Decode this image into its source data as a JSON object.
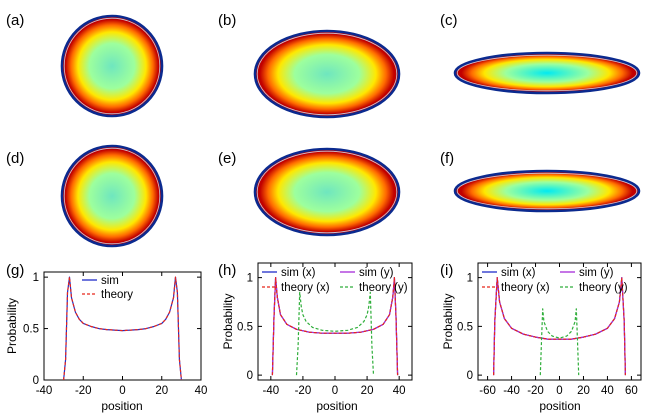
{
  "colors": {
    "blue": "#1f2dc8",
    "purple": "#a62bd8",
    "red": "#e8261a",
    "green": "#2fae3a",
    "ring": "#0b2a8f",
    "heat_edge": "#c10000",
    "heat_mid1": "#ff6a00",
    "heat_mid2": "#ffe800",
    "heat_mid3": "#9dff9d",
    "heat_center_a": "#6fe6bf",
    "heat_center_b": "#00eaf2"
  },
  "panels": [
    {
      "label": "(a)",
      "shape": "ellipse",
      "aspect": 1.0,
      "center_color": "heat_center_a"
    },
    {
      "label": "(b)",
      "shape": "ellipse",
      "aspect": 0.6,
      "center_color": "heat_center_a"
    },
    {
      "label": "(c)",
      "shape": "ellipse",
      "aspect": 0.22,
      "center_color": "heat_center_b"
    },
    {
      "label": "(d)",
      "shape": "ellipse",
      "aspect": 1.0,
      "center_color": "heat_center_a"
    },
    {
      "label": "(e)",
      "shape": "ellipse",
      "aspect": 0.6,
      "center_color": "heat_center_a"
    },
    {
      "label": "(f)",
      "shape": "ellipse",
      "aspect": 0.22,
      "center_color": "heat_center_b"
    }
  ],
  "chart_data": [
    {
      "type": "line",
      "panel_label": "(g)",
      "xlabel": "position",
      "ylabel": "Probability",
      "xlim": [
        -40,
        40
      ],
      "ylim": [
        0,
        1.05
      ],
      "xticks": [
        -40,
        -20,
        0,
        20,
        40
      ],
      "yticks": [
        0,
        0.5,
        1
      ],
      "ytick_labels": [
        "0",
        "0.5",
        "1"
      ],
      "legend": [
        "sim",
        "theory"
      ],
      "series": [
        {
          "name": "sim",
          "style": "solid",
          "color": "blue",
          "x": [
            -30,
            -29,
            -28,
            -27,
            -26,
            -24,
            -22,
            -20,
            -16,
            -12,
            -8,
            -4,
            0,
            4,
            8,
            12,
            16,
            20,
            22,
            24,
            26,
            27,
            28,
            29,
            30
          ],
          "y": [
            0,
            0.2,
            0.85,
            1.0,
            0.8,
            0.66,
            0.59,
            0.55,
            0.52,
            0.5,
            0.49,
            0.485,
            0.48,
            0.485,
            0.49,
            0.5,
            0.52,
            0.55,
            0.59,
            0.66,
            0.8,
            1.0,
            0.85,
            0.2,
            0
          ]
        },
        {
          "name": "theory",
          "style": "dashed",
          "color": "red",
          "x": [
            -30,
            -29,
            -28,
            -27,
            -26,
            -24,
            -22,
            -20,
            -16,
            -12,
            -8,
            -4,
            0,
            4,
            8,
            12,
            16,
            20,
            22,
            24,
            26,
            27,
            28,
            29,
            30
          ],
          "y": [
            0,
            0.2,
            0.85,
            1.0,
            0.8,
            0.66,
            0.59,
            0.55,
            0.52,
            0.5,
            0.49,
            0.485,
            0.48,
            0.485,
            0.49,
            0.5,
            0.52,
            0.55,
            0.59,
            0.66,
            0.8,
            1.0,
            0.85,
            0.2,
            0
          ]
        }
      ]
    },
    {
      "type": "line",
      "panel_label": "(h)",
      "xlabel": "position",
      "ylabel": "Probability",
      "xlim": [
        -48,
        48
      ],
      "ylim": [
        -0.05,
        1.15
      ],
      "xticks": [
        -40,
        -20,
        0,
        20,
        40
      ],
      "yticks": [
        0,
        0.5,
        1
      ],
      "ytick_labels": [
        "0",
        "0.5",
        "1"
      ],
      "legend": [
        "sim (x)",
        "sim (y)",
        "theory (x)",
        "theory (y)"
      ],
      "series": [
        {
          "name": "sim (x)",
          "style": "solid",
          "color": "blue",
          "x": [
            -39,
            -38,
            -37,
            -36,
            -34,
            -30,
            -24,
            -16,
            -8,
            0,
            8,
            16,
            24,
            30,
            34,
            36,
            37,
            38,
            39
          ],
          "y": [
            0,
            0.6,
            1.0,
            0.8,
            0.62,
            0.52,
            0.47,
            0.44,
            0.43,
            0.43,
            0.43,
            0.44,
            0.47,
            0.52,
            0.62,
            0.8,
            1.0,
            0.6,
            0
          ]
        },
        {
          "name": "sim (y)",
          "style": "solid",
          "color": "purple",
          "x": [
            -39,
            -38,
            -37,
            -36,
            -34,
            -30,
            -24,
            -16,
            -8,
            0,
            8,
            16,
            24,
            30,
            34,
            36,
            37,
            38,
            39
          ],
          "y": [
            0,
            0.6,
            1.0,
            0.8,
            0.62,
            0.52,
            0.47,
            0.44,
            0.43,
            0.43,
            0.43,
            0.44,
            0.47,
            0.52,
            0.62,
            0.8,
            1.0,
            0.6,
            0
          ]
        },
        {
          "name": "theory (x)",
          "style": "dashed",
          "color": "red",
          "x": [
            -39,
            -38,
            -37,
            -36,
            -34,
            -30,
            -24,
            -16,
            -8,
            0,
            8,
            16,
            24,
            30,
            34,
            36,
            37,
            38,
            39
          ],
          "y": [
            0,
            0.6,
            1.0,
            0.8,
            0.62,
            0.52,
            0.47,
            0.44,
            0.43,
            0.43,
            0.43,
            0.44,
            0.47,
            0.52,
            0.62,
            0.8,
            1.0,
            0.6,
            0
          ]
        },
        {
          "name": "theory (y)",
          "style": "dashed",
          "color": "green",
          "x": [
            -24,
            -23,
            -22,
            -21,
            -20,
            -18,
            -14,
            -8,
            0,
            8,
            14,
            18,
            20,
            21,
            22,
            23,
            24
          ],
          "y": [
            0,
            0.3,
            0.85,
            0.7,
            0.62,
            0.55,
            0.49,
            0.46,
            0.45,
            0.46,
            0.49,
            0.55,
            0.62,
            0.7,
            0.85,
            0.3,
            0
          ]
        }
      ]
    },
    {
      "type": "line",
      "panel_label": "(i)",
      "xlabel": "position",
      "ylabel": "Probability",
      "xlim": [
        -68,
        68
      ],
      "ylim": [
        -0.05,
        1.15
      ],
      "xticks": [
        -60,
        -40,
        -20,
        0,
        20,
        40,
        60
      ],
      "yticks": [
        0,
        0.5,
        1
      ],
      "ytick_labels": [
        "0",
        "0.5",
        "1"
      ],
      "legend": [
        "sim (x)",
        "sim (y)",
        "theory (x)",
        "theory (y)"
      ],
      "series": [
        {
          "name": "sim (x)",
          "style": "solid",
          "color": "blue",
          "x": [
            -55,
            -54,
            -52,
            -50,
            -46,
            -40,
            -30,
            -20,
            -10,
            0,
            10,
            20,
            30,
            40,
            46,
            50,
            52,
            54,
            55
          ],
          "y": [
            0,
            0.55,
            1.0,
            0.75,
            0.58,
            0.48,
            0.42,
            0.39,
            0.37,
            0.37,
            0.37,
            0.39,
            0.42,
            0.48,
            0.58,
            0.75,
            1.0,
            0.55,
            0
          ]
        },
        {
          "name": "sim (y)",
          "style": "solid",
          "color": "purple",
          "x": [
            -55,
            -54,
            -52,
            -50,
            -46,
            -40,
            -30,
            -20,
            -10,
            0,
            10,
            20,
            30,
            40,
            46,
            50,
            52,
            54,
            55
          ],
          "y": [
            0,
            0.55,
            1.0,
            0.75,
            0.58,
            0.48,
            0.42,
            0.39,
            0.37,
            0.37,
            0.37,
            0.39,
            0.42,
            0.48,
            0.58,
            0.75,
            1.0,
            0.55,
            0
          ]
        },
        {
          "name": "theory (x)",
          "style": "dashed",
          "color": "red",
          "x": [
            -55,
            -54,
            -52,
            -50,
            -46,
            -40,
            -30,
            -20,
            -10,
            0,
            10,
            20,
            30,
            40,
            46,
            50,
            52,
            54,
            55
          ],
          "y": [
            0,
            0.55,
            1.0,
            0.75,
            0.58,
            0.48,
            0.42,
            0.39,
            0.37,
            0.37,
            0.37,
            0.39,
            0.42,
            0.48,
            0.58,
            0.75,
            1.0,
            0.55,
            0
          ]
        },
        {
          "name": "theory (y)",
          "style": "dashed",
          "color": "green",
          "x": [
            -16,
            -15,
            -14,
            -13,
            -10,
            -6,
            0,
            6,
            10,
            13,
            14,
            15,
            16
          ],
          "y": [
            0,
            0.35,
            0.68,
            0.55,
            0.45,
            0.4,
            0.38,
            0.4,
            0.45,
            0.55,
            0.68,
            0.35,
            0
          ]
        }
      ]
    }
  ]
}
